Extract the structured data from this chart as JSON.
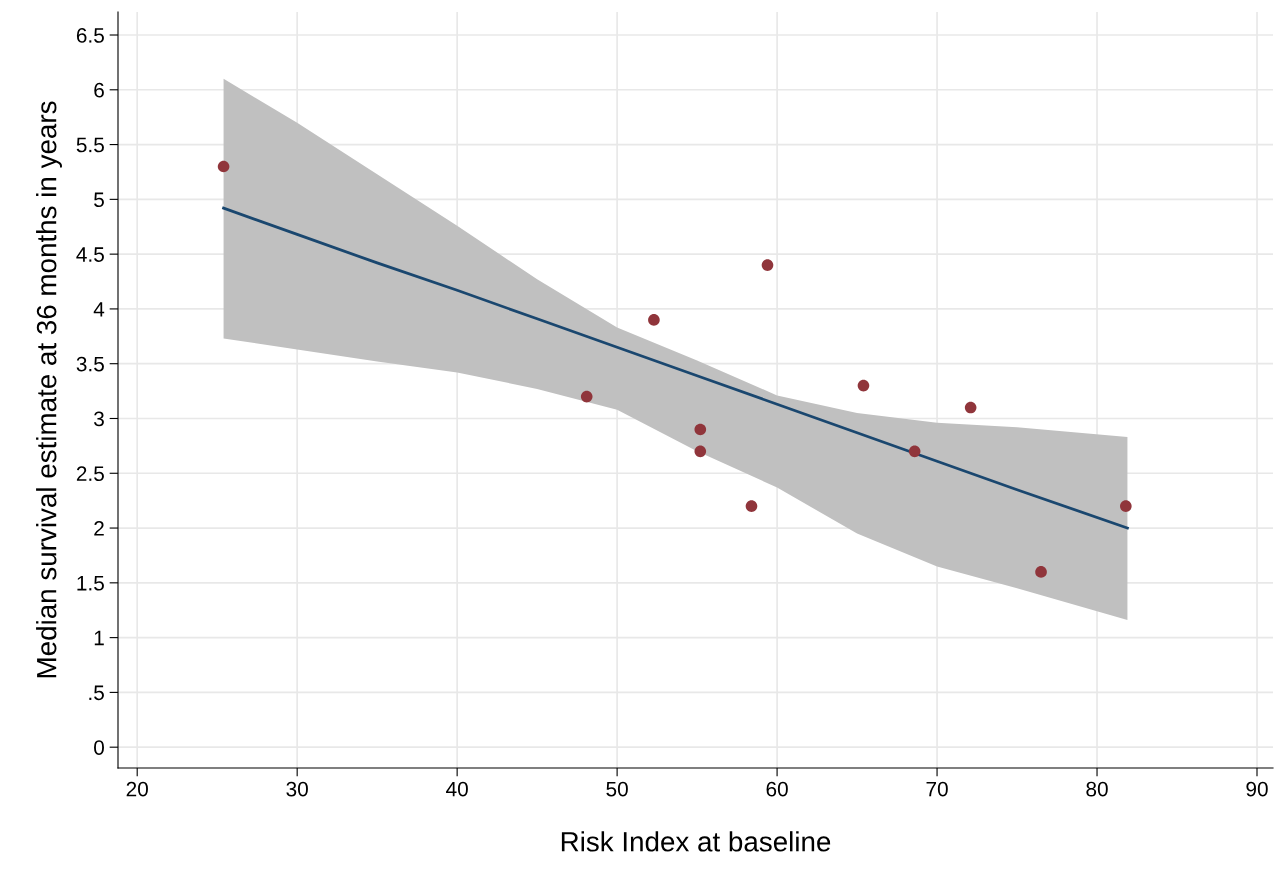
{
  "chart_data": {
    "type": "scatter",
    "xlabel": "Risk Index at baseline",
    "ylabel": "Median survival estimate at 36 months in years",
    "xlim": [
      18.8,
      91
    ],
    "xticks": [
      20,
      30,
      40,
      50,
      60,
      70,
      80,
      90
    ],
    "ylim": [
      -0.19,
      6.71
    ],
    "yticks": [
      0,
      {
        "value": 0.5,
        "label": ".5"
      },
      1,
      1.5,
      2,
      2.5,
      3,
      3.5,
      4,
      4.5,
      5,
      5.5,
      6,
      6.5
    ],
    "grid": true,
    "series": [
      {
        "type": "line",
        "color": "#1a476f",
        "x": [
          25.4,
          30,
          35,
          40,
          45,
          50,
          55,
          60,
          65,
          70,
          75,
          81.9
        ],
        "values": [
          4.92,
          4.68,
          4.42,
          4.17,
          3.91,
          3.65,
          3.39,
          3.13,
          2.87,
          2.61,
          2.35,
          2.0
        ],
        "lower": [
          3.73,
          3.63,
          3.52,
          3.42,
          3.27,
          3.08,
          2.7,
          2.37,
          1.95,
          1.65,
          1.45,
          1.16
        ],
        "upper": [
          6.1,
          5.7,
          5.23,
          4.76,
          4.27,
          3.83,
          3.53,
          3.21,
          3.05,
          2.96,
          2.92,
          2.83
        ],
        "marker": "none"
      },
      {
        "color": "#90353b",
        "marker": "circle",
        "x": [
          25.4,
          48.1,
          52.3,
          55.2,
          55.2,
          58.4,
          59.4,
          65.4,
          68.6,
          72.1,
          76.5,
          81.8
        ],
        "values": [
          5.3,
          3.2,
          3.9,
          2.9,
          2.7,
          2.2,
          4.4,
          3.3,
          2.7,
          3.1,
          1.6,
          2.2
        ]
      }
    ]
  }
}
